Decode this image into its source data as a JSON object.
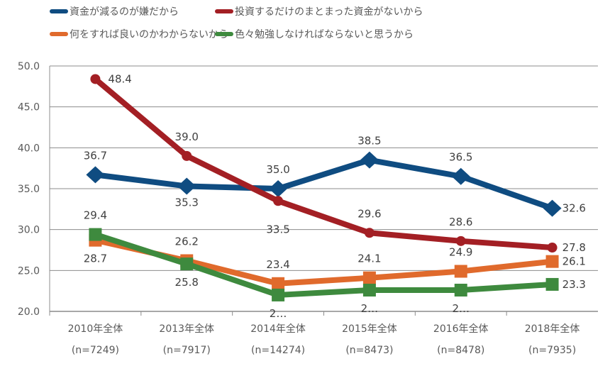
{
  "chart_data": {
    "type": "line",
    "categories": [
      "2010年全体",
      "2013年全体",
      "2014年全体",
      "2015年全体",
      "2016年全体",
      "2018年全体"
    ],
    "category_sublabels": [
      "(n=7249)",
      "(n=7917)",
      "(n=14274)",
      "(n=8473)",
      "(n=8478)",
      "(n=7935)"
    ],
    "ylim": [
      20,
      50
    ],
    "yticks": [
      "20.0",
      "25.0",
      "30.0",
      "35.0",
      "40.0",
      "45.0",
      "50.0"
    ],
    "grid": true,
    "legend_placement": "top",
    "series": [
      {
        "name": "資金が減るのが嫌だから",
        "color": "#0f4c81",
        "marker": "diamond",
        "values": [
          36.7,
          35.3,
          35.0,
          38.5,
          36.5,
          32.6
        ],
        "labels": [
          "36.7",
          "35.3",
          "35.0",
          "38.5",
          "36.5",
          "32.6"
        ]
      },
      {
        "name": "投資するだけのまとまった資金がないから",
        "color": "#a31f24",
        "marker": "circle",
        "values": [
          48.4,
          39.0,
          33.5,
          29.6,
          28.6,
          27.8
        ],
        "labels": [
          "48.4",
          "39.0",
          "33.5",
          "29.6",
          "28.6",
          "27.8"
        ]
      },
      {
        "name": "何をすれば良いのかわからないから",
        "color": "#e06a2c",
        "marker": "square",
        "values": [
          28.7,
          26.2,
          23.4,
          24.1,
          24.9,
          26.1
        ],
        "labels": [
          "28.7",
          "26.2",
          "23.4",
          "24.1",
          "24.9",
          "26.1"
        ]
      },
      {
        "name": "色々勉強しなければならないと思うから",
        "color": "#3e8a3e",
        "marker": "square",
        "values": [
          29.4,
          25.8,
          22.0,
          22.6,
          22.6,
          23.3
        ],
        "labels": [
          "29.4",
          "25.8",
          "2…",
          "2…",
          "2…",
          "23.3"
        ]
      }
    ]
  }
}
